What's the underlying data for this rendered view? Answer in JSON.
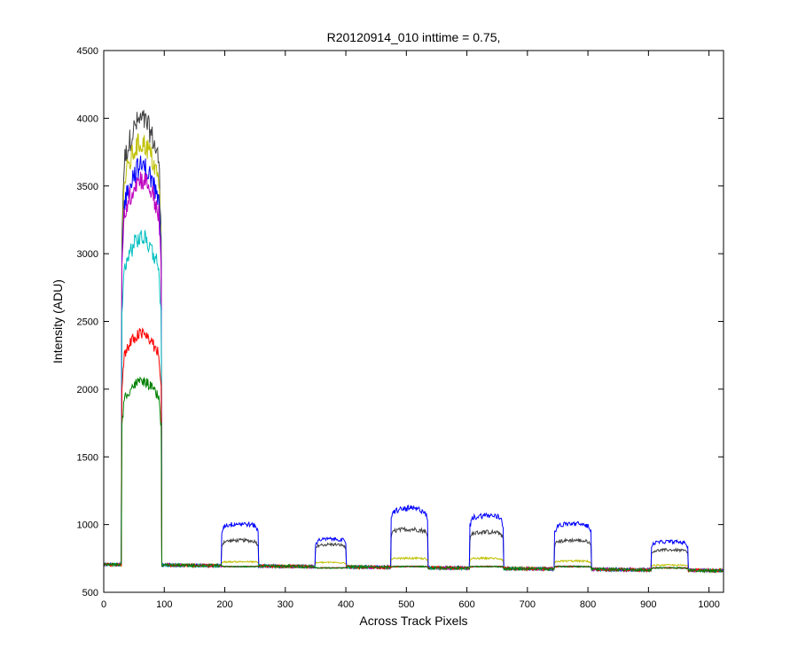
{
  "chart_data": {
    "type": "line",
    "title": "R20120914_010 inttime = 0.75,",
    "xlabel": "Across Track Pixels",
    "ylabel": "Intensity (ADU)",
    "xlim": [
      0,
      1024
    ],
    "ylim": [
      500,
      4500
    ],
    "xticks": [
      0,
      100,
      200,
      300,
      400,
      500,
      600,
      700,
      800,
      900,
      1000
    ],
    "yticks": [
      500,
      1000,
      1500,
      2000,
      2500,
      3000,
      3500,
      4000,
      4500
    ],
    "grid": false,
    "legend": "none",
    "baseline": {
      "start": 705,
      "end": 660
    },
    "plateaus": [
      {
        "x_start": 30,
        "x_end": 95
      },
      {
        "x_start": 195,
        "x_end": 255
      },
      {
        "x_start": 350,
        "x_end": 400
      },
      {
        "x_start": 475,
        "x_end": 535
      },
      {
        "x_start": 605,
        "x_end": 660
      },
      {
        "x_start": 745,
        "x_end": 805
      },
      {
        "x_start": 905,
        "x_end": 965
      }
    ],
    "series": [
      {
        "color": "#404040",
        "peak_levels": [
          3800,
          880,
          850,
          960,
          940,
          880,
          810
        ]
      },
      {
        "color": "#bfbf00",
        "peak_levels": [
          3640,
          725,
          720,
          750,
          750,
          730,
          700
        ]
      },
      {
        "color": "#0000ff",
        "peak_levels": [
          3480,
          1000,
          890,
          1110,
          1060,
          1000,
          870
        ]
      },
      {
        "color": "#bf00bf",
        "peak_levels": [
          3390,
          690,
          680,
          690,
          690,
          690,
          680
        ]
      },
      {
        "color": "#00bfbf",
        "peak_levels": [
          2980,
          690,
          680,
          690,
          690,
          690,
          680
        ]
      },
      {
        "color": "#ff0000",
        "peak_levels": [
          2310,
          690,
          680,
          690,
          690,
          690,
          680
        ]
      },
      {
        "color": "#008000",
        "peak_levels": [
          1980,
          690,
          680,
          690,
          690,
          690,
          680
        ]
      }
    ]
  }
}
